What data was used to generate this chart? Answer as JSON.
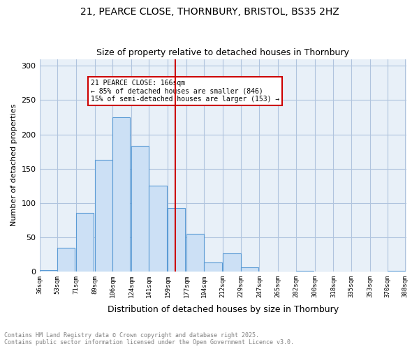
{
  "title1": "21, PEARCE CLOSE, THORNBURY, BRISTOL, BS35 2HZ",
  "title2": "Size of property relative to detached houses in Thornbury",
  "xlabel": "Distribution of detached houses by size in Thornbury",
  "ylabel": "Number of detached properties",
  "bar_left_edges": [
    36,
    53,
    71,
    89,
    106,
    124,
    141,
    159,
    177,
    194,
    212,
    229,
    247,
    265,
    282,
    300,
    318,
    335,
    353,
    370
  ],
  "bar_heights": [
    2,
    34,
    85,
    163,
    225,
    183,
    125,
    93,
    55,
    13,
    26,
    6,
    0,
    0,
    1,
    0,
    0,
    0,
    0,
    1
  ],
  "bin_width": 17,
  "tick_labels": [
    "36sqm",
    "53sqm",
    "71sqm",
    "89sqm",
    "106sqm",
    "124sqm",
    "141sqm",
    "159sqm",
    "177sqm",
    "194sqm",
    "212sqm",
    "229sqm",
    "247sqm",
    "265sqm",
    "282sqm",
    "300sqm",
    "318sqm",
    "335sqm",
    "353sqm",
    "370sqm",
    "388sqm"
  ],
  "bar_color": "#cce0f5",
  "bar_edge_color": "#5b9bd5",
  "property_line_x": 166,
  "property_line_color": "#cc0000",
  "annotation_title": "21 PEARCE CLOSE: 166sqm",
  "annotation_line1": "← 85% of detached houses are smaller (846)",
  "annotation_line2": "15% of semi-detached houses are larger (153) →",
  "annotation_box_color": "#cc0000",
  "ylim": [
    0,
    310
  ],
  "yticks": [
    0,
    50,
    100,
    150,
    200,
    250,
    300
  ],
  "grid_color": "#b0c4de",
  "background_color": "#e8f0f8",
  "footer": "Contains HM Land Registry data © Crown copyright and database right 2025.\nContains public sector information licensed under the Open Government Licence v3.0."
}
